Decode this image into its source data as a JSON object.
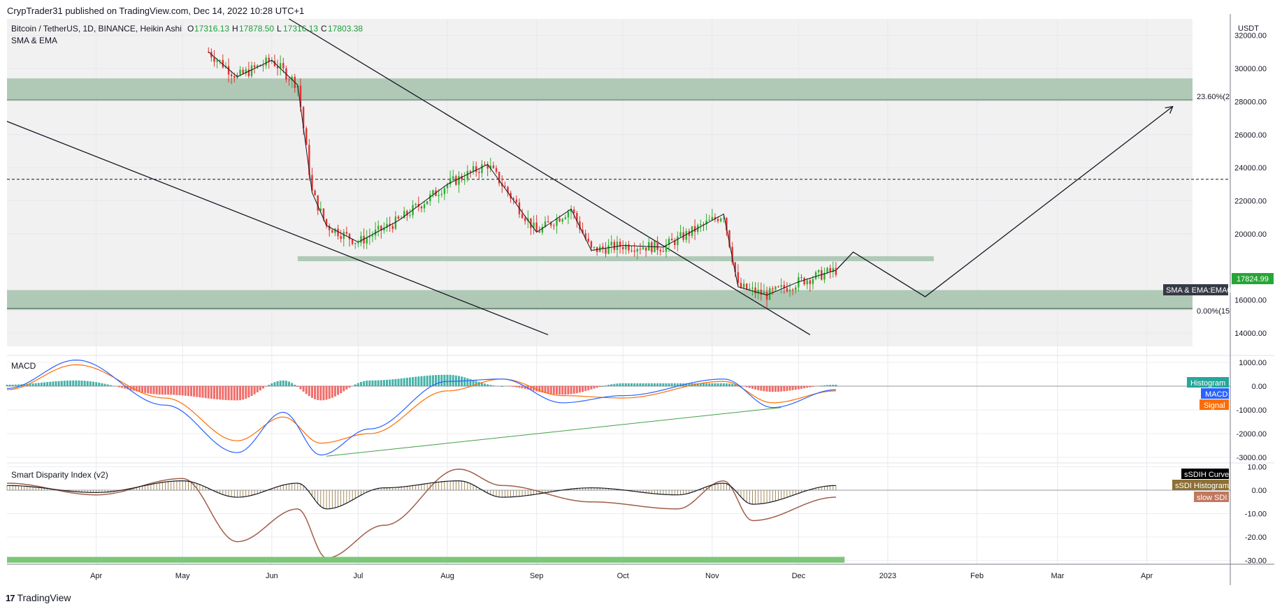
{
  "header": {
    "published": "CrypTrader31 published on TradingView.com, Dec 14, 2022 10:28 UTC+1"
  },
  "footer": {
    "brand": "TradingView",
    "logo_glyph": "17"
  },
  "colors": {
    "up": "#26a69a",
    "down": "#ef5350",
    "zone": "#a5c2ad",
    "macd": "#2962ff",
    "signal": "#ff6d00",
    "sdi_curve": "#131722",
    "sdi_hist": "#8d7036",
    "slow_sdi": "#a15e48",
    "green_bar": "#7cc67a",
    "candle_up": "#2db02d",
    "candle_down": "#e0322f"
  },
  "price_pane": {
    "symbol": "Bitcoin / TetherUS, 1D, BINANCE, Heikin Ashi",
    "ohlc": {
      "o_label": "O",
      "o": "17316.13",
      "h_label": "H",
      "h": "17878.50",
      "l_label": "L",
      "l": "17316.13",
      "c_label": "C",
      "c": "17803.38"
    },
    "indicator": "SMA & EMA",
    "currency": "USDT",
    "ema_tag": "SMA & EMA:EMA6",
    "price_tag": "17824.99",
    "fib_236": "23.60%(2",
    "fib_0": "0.00%(15",
    "y_ticks": [
      "32000.00",
      "30000.00",
      "28000.00",
      "26000.00",
      "24000.00",
      "22000.00",
      "20000.00",
      "16000.00",
      "14000.00"
    ]
  },
  "macd_pane": {
    "title": "MACD",
    "y_ticks": [
      "1000.00",
      "0.00",
      "-1000.00",
      "-2000.00",
      "-3000.00"
    ],
    "legend": {
      "histogram": "Histogram",
      "macd": "MACD",
      "signal": "Signal"
    }
  },
  "sdi_pane": {
    "title": "Smart Disparity Index (v2)",
    "y_ticks": [
      "10.00",
      "0.00",
      "-10.00",
      "-20.00",
      "-30.00"
    ],
    "legend": {
      "curve": "sSDIH Curve",
      "histogram": "sSDI Histogram",
      "slow": "slow SDI"
    }
  },
  "x_ticks": [
    "Apr",
    "May",
    "Jun",
    "Jul",
    "Aug",
    "Sep",
    "Oct",
    "Nov",
    "Dec",
    "2023",
    "Feb",
    "Mar",
    "Apr"
  ],
  "chart_data": {
    "type": "line",
    "series_candles": {
      "dates": [
        "2022-05-10",
        "2022-05-20",
        "2022-06-01",
        "2022-06-10",
        "2022-06-15",
        "2022-06-20",
        "2022-07-01",
        "2022-07-15",
        "2022-08-01",
        "2022-08-15",
        "2022-09-01",
        "2022-09-13",
        "2022-09-20",
        "2022-10-01",
        "2022-10-15",
        "2022-11-05",
        "2022-11-10",
        "2022-11-20",
        "2022-12-01",
        "2022-12-14"
      ],
      "close": [
        31000,
        29500,
        30500,
        29000,
        22500,
        20500,
        19500,
        20800,
        23000,
        24200,
        20100,
        21500,
        19000,
        19300,
        19200,
        21200,
        16800,
        16300,
        17100,
        17803
      ]
    },
    "fib_23_6": 28100,
    "fib_0": 15500,
    "horizontal_dashed": 23300,
    "zones": [
      {
        "from": 28100,
        "to": 29400
      },
      {
        "from": 18300,
        "to": 18600
      },
      {
        "from": 15500,
        "to": 16600
      }
    ],
    "projection": {
      "dates": [
        "2022-12-14",
        "2022-12-20",
        "2023-01-14",
        "2023-04-10"
      ],
      "values": [
        17800,
        18900,
        16200,
        27700
      ]
    },
    "y_range": [
      13200,
      33000
    ],
    "macd_range": [
      -3600,
      1100
    ],
    "sdi_range": [
      -31,
      11
    ]
  }
}
